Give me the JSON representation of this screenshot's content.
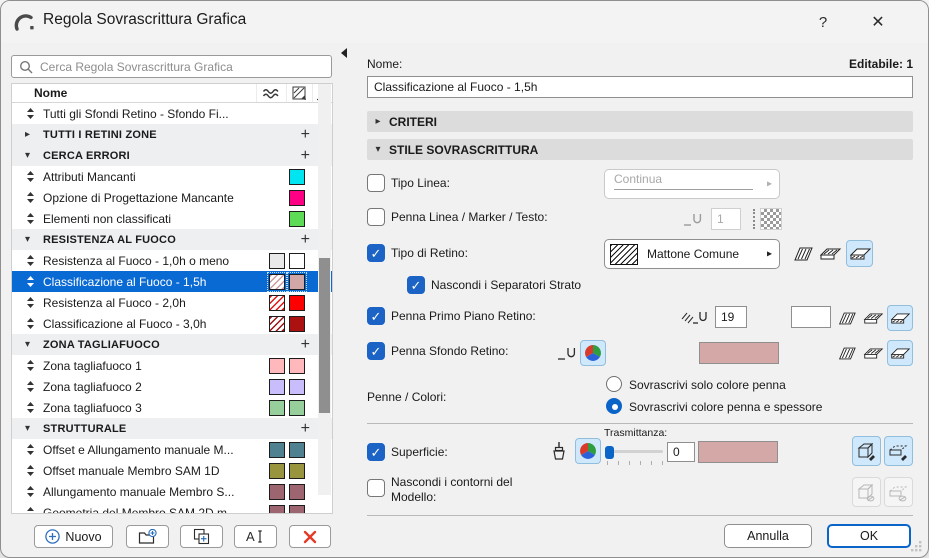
{
  "window": {
    "title": "Regola Sovrascrittura Grafica",
    "help_label": "?",
    "close_label": "✕"
  },
  "search": {
    "placeholder": "Cerca Regola Sovrascrittura Grafica"
  },
  "list": {
    "name_column": "Nome",
    "rows": [
      {
        "type": "item",
        "label": "Tutti gli Sfondi Retino - Sfondo Fi...",
        "swatches": []
      },
      {
        "type": "group",
        "label": "TUTTI I RETINI ZONE",
        "expanded": false
      },
      {
        "type": "group",
        "label": "CERCA ERRORI",
        "expanded": true
      },
      {
        "type": "item",
        "label": "Attributi Mancanti",
        "swatches": [
          {
            "color": "#00e5f0"
          }
        ]
      },
      {
        "type": "item",
        "label": "Opzione di Progettazione Mancante",
        "swatches": [
          {
            "color": "#ff0084"
          }
        ]
      },
      {
        "type": "item",
        "label": "Elementi non classificati",
        "swatches": [
          {
            "color": "#5ddb57"
          }
        ]
      },
      {
        "type": "group",
        "label": "RESISTENZA AL FUOCO",
        "expanded": true
      },
      {
        "type": "item",
        "label": "Resistenza al Fuoco - 1,0h o meno",
        "swatches": [
          {
            "color": "#e9e9e9"
          },
          {
            "color": "#ffffff"
          }
        ]
      },
      {
        "type": "item",
        "label": "Classificazione al Fuoco - 1,5h",
        "selected": true,
        "swatches": [
          {
            "color": "#cc9c9c",
            "hatch": true
          },
          {
            "color": "#d0a6a6"
          }
        ]
      },
      {
        "type": "item",
        "label": "Resistenza al Fuoco - 2,0h",
        "swatches": [
          {
            "color": "#e31515",
            "hatch": true
          },
          {
            "color": "#ff0000"
          }
        ]
      },
      {
        "type": "item",
        "label": "Classificazione al Fuoco - 3,0h",
        "swatches": [
          {
            "color": "#9c1414",
            "hatch": true
          },
          {
            "color": "#ab1111"
          }
        ]
      },
      {
        "type": "group",
        "label": "ZONA TAGLIAFUOCO",
        "expanded": true
      },
      {
        "type": "item",
        "label": "Zona tagliafuoco 1",
        "swatches": [
          {
            "color": "#ffb8bc"
          },
          {
            "color": "#ffb8bc"
          }
        ]
      },
      {
        "type": "item",
        "label": "Zona tagliafuoco 2",
        "swatches": [
          {
            "color": "#c9bdfc"
          },
          {
            "color": "#c9bdfc"
          }
        ]
      },
      {
        "type": "item",
        "label": "Zona tagliafuoco 3",
        "swatches": [
          {
            "color": "#96cf9b"
          },
          {
            "color": "#96cf9b"
          }
        ]
      },
      {
        "type": "group",
        "label": "STRUTTURALE",
        "expanded": true
      },
      {
        "type": "item",
        "label": "Offset e Allungamento manuale M...",
        "swatches": [
          {
            "color": "#4f8191"
          },
          {
            "color": "#4f8191"
          }
        ]
      },
      {
        "type": "item",
        "label": "Offset manuale Membro SAM 1D",
        "swatches": [
          {
            "color": "#99943e"
          },
          {
            "color": "#99943e"
          }
        ]
      },
      {
        "type": "item",
        "label": "Allungamento manuale Membro S...",
        "swatches": [
          {
            "color": "#9d6570"
          },
          {
            "color": "#9d6570"
          }
        ]
      },
      {
        "type": "item",
        "label": "Geometria del Membro SAM 2D m...",
        "swatches": [
          {
            "color": "#9d6570"
          },
          {
            "color": "#9d6570"
          }
        ]
      }
    ]
  },
  "toolbar": {
    "new_label": "Nuovo"
  },
  "editor": {
    "name_label": "Nome:",
    "editable_info": "Editabile: 1",
    "name_value": "Classificazione al Fuoco - 1,5h",
    "criteri_section": "CRITERI",
    "stile_section": "STILE SOVRASCRITTURA",
    "tipo_linea": {
      "label": "Tipo Linea:",
      "checked": false,
      "value": "Continua"
    },
    "penna_linea": {
      "label": "Penna Linea / Marker / Testo:",
      "checked": false,
      "pen": "1"
    },
    "tipo_retino": {
      "label": "Tipo di Retino:",
      "checked": true,
      "value": "Mattone Comune"
    },
    "nascondi_separatori": {
      "label": "Nascondi i Separatori Strato",
      "checked": true
    },
    "penna_primo_piano": {
      "label": "Penna Primo Piano Retino:",
      "checked": true,
      "pen": "19",
      "color": "#ffffff"
    },
    "penna_sfondo": {
      "label": "Penna Sfondo Retino:",
      "checked": true,
      "color": "#d5a8a8"
    },
    "penne_colori": {
      "label": "Penne / Colori:",
      "options": [
        {
          "label": "Sovrascrivi solo colore penna",
          "selected": false
        },
        {
          "label": "Sovrascrivi colore penna e spessore",
          "selected": true
        }
      ]
    },
    "superficie": {
      "label": "Superficie:",
      "checked": true,
      "trasmittanza_label": "Trasmittanza:",
      "trasmittanza": "0",
      "color": "#d5a8a8"
    },
    "nascondi_contorni": {
      "label": "Nascondi i contorni del Modello:",
      "checked": false
    }
  },
  "footer": {
    "cancel": "Annulla",
    "ok": "OK"
  },
  "colors": {
    "accent": "#0b64c8",
    "selection": "#0a6ad4",
    "active_button_bg": "#cfe8fb"
  }
}
